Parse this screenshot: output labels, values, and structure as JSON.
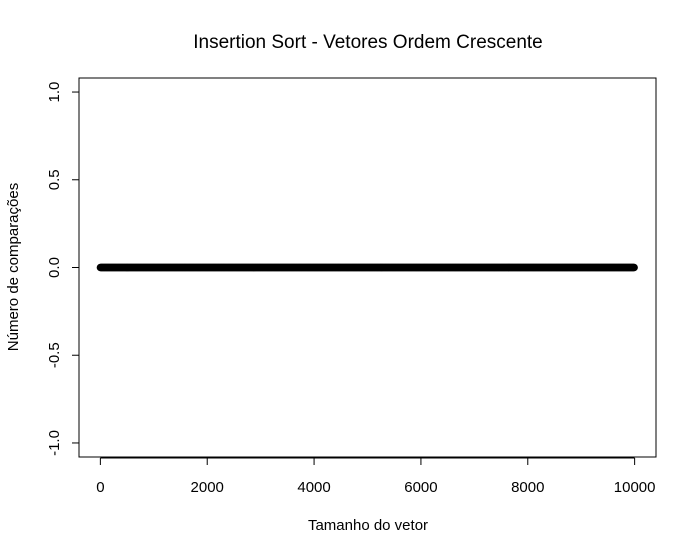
{
  "chart_data": {
    "type": "scatter",
    "title": "Insertion Sort - Vetores Ordem Crescente",
    "xlabel": "Tamanho do vetor",
    "ylabel": "Número de comparações",
    "xlim": [
      -400,
      10400
    ],
    "ylim": [
      -1.08,
      1.08
    ],
    "x_ticks": [
      0,
      2000,
      4000,
      6000,
      8000,
      10000
    ],
    "x_tick_labels": [
      "0",
      "2000",
      "4000",
      "6000",
      "8000",
      "10000"
    ],
    "y_ticks": [
      -1.0,
      -0.5,
      0.0,
      0.5,
      1.0
    ],
    "y_tick_labels": [
      "-1.0",
      "-0.5",
      "0.0",
      "0.5",
      "1.0"
    ],
    "grid": false,
    "series": [
      {
        "x_start": 1,
        "x_end": 10000,
        "x_step": 10,
        "y_constant": 0,
        "color": "#000000"
      }
    ]
  }
}
